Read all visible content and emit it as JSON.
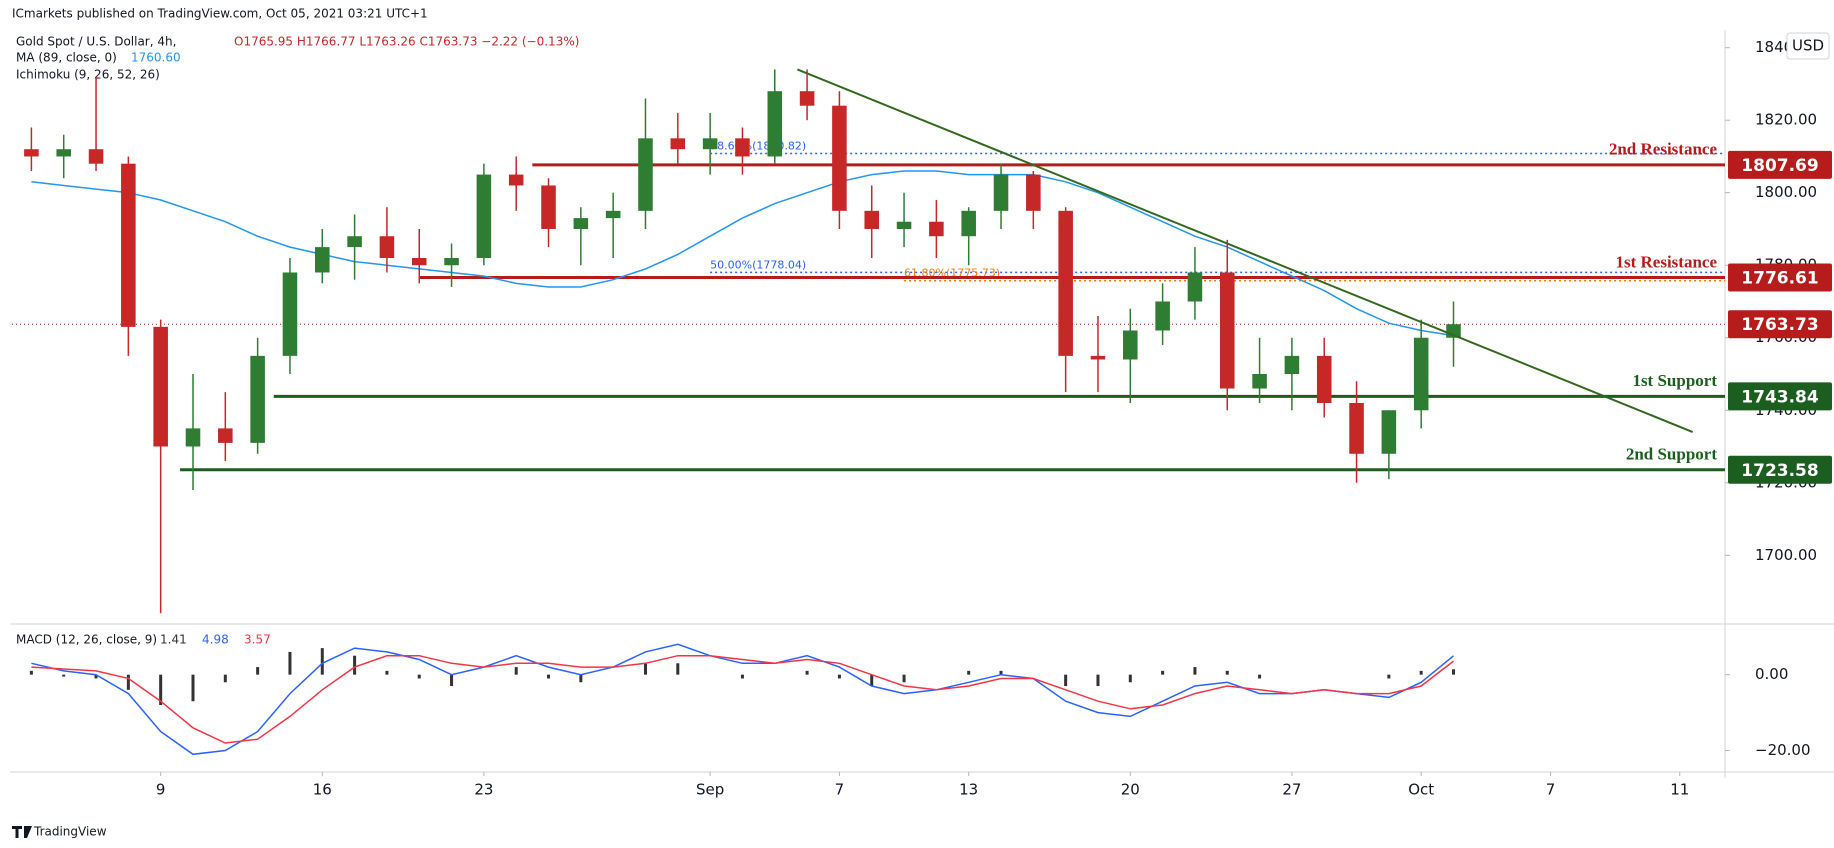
{
  "header": {
    "publisher": "ICmarkets published on TradingView.com, Oct 05, 2021 03:21 UTC+1",
    "symbol": "Gold Spot / U.S. Dollar, 4h,",
    "ohlc": "O1765.95 H1766.77 L1763.26 C1763.73 −2.22 (−0.13%)",
    "ma": "MA (89, close, 0)",
    "ma_value": "1760.60",
    "ichimoku": "Ichimoku (9, 26, 52, 26)",
    "currency": "USD"
  },
  "chart_data": [
    {
      "type": "candlestick",
      "x": [
        -4,
        -3,
        -2,
        -1,
        0,
        1,
        2,
        3,
        4,
        5,
        6,
        7,
        8,
        9,
        10,
        11,
        12,
        13,
        14,
        15,
        16,
        17,
        18,
        19,
        20,
        21,
        22,
        23,
        24,
        25,
        26,
        27,
        28,
        29,
        30,
        31,
        32,
        33,
        34,
        35,
        36,
        37,
        38,
        39,
        40
      ],
      "open": [
        1812,
        1810,
        1812,
        1808,
        1763,
        1730,
        1735,
        1731,
        1755,
        1778,
        1785,
        1788,
        1782,
        1780,
        1782,
        1805,
        1802,
        1790,
        1793,
        1795,
        1815,
        1812,
        1815,
        1810,
        1828,
        1824,
        1795,
        1790,
        1792,
        1788,
        1795,
        1805,
        1795,
        1755,
        1754,
        1762,
        1770,
        1778,
        1746,
        1750,
        1755,
        1742,
        1728,
        1740,
        1760
      ],
      "high": [
        1818,
        1816,
        1832,
        1810,
        1765,
        1750,
        1745,
        1760,
        1782,
        1790,
        1794,
        1796,
        1790,
        1786,
        1808,
        1810,
        1804,
        1796,
        1800,
        1826,
        1822,
        1822,
        1818,
        1834,
        1834,
        1828,
        1802,
        1800,
        1798,
        1796,
        1808,
        1806,
        1796,
        1766,
        1768,
        1775,
        1785,
        1787,
        1760,
        1760,
        1760,
        1748,
        1740,
        1765,
        1770
      ],
      "low": [
        1806,
        1804,
        1806,
        1755,
        1684,
        1718,
        1726,
        1728,
        1750,
        1775,
        1776,
        1778,
        1775,
        1774,
        1780,
        1795,
        1785,
        1780,
        1782,
        1790,
        1808,
        1805,
        1805,
        1808,
        1820,
        1790,
        1782,
        1785,
        1782,
        1780,
        1790,
        1790,
        1745,
        1745,
        1742,
        1758,
        1765,
        1740,
        1742,
        1740,
        1738,
        1720,
        1721,
        1735,
        1752
      ],
      "close": [
        1810,
        1812,
        1808,
        1763,
        1730,
        1735,
        1731,
        1755,
        1778,
        1785,
        1788,
        1782,
        1780,
        1782,
        1805,
        1802,
        1790,
        1793,
        1795,
        1815,
        1812,
        1815,
        1810,
        1828,
        1824,
        1795,
        1790,
        1792,
        1788,
        1795,
        1805,
        1795,
        1755,
        1754,
        1762,
        1770,
        1778,
        1746,
        1750,
        1755,
        1742,
        1728,
        1740,
        1760,
        1763.73
      ],
      "up_color": "#2e7d32",
      "down_color": "#c62828",
      "ma": {
        "color": "#2196f3",
        "values": [
          1803,
          1802,
          1801,
          1800,
          1798,
          1795,
          1792,
          1788,
          1785,
          1783,
          1781,
          1780,
          1779,
          1778,
          1777,
          1775,
          1774,
          1774,
          1776,
          1779,
          1783,
          1788,
          1793,
          1797,
          1800,
          1803,
          1805,
          1806,
          1806,
          1805,
          1805,
          1805,
          1803,
          1800,
          1796,
          1792,
          1788,
          1785,
          1781,
          1777,
          1773,
          1768,
          1764,
          1762,
          1760.6
        ]
      },
      "levels": [
        {
          "name": "2nd Resistance",
          "value": 1807.69,
          "from": 11.5,
          "color": "#b71c1c"
        },
        {
          "name": "1st Resistance",
          "value": 1776.61,
          "from": 8,
          "color": "#b71c1c"
        },
        {
          "name": "1st Support",
          "value": 1743.84,
          "from": 3.5,
          "color": "#1b5e20"
        },
        {
          "name": "2nd Support",
          "value": 1723.58,
          "from": 0.6,
          "color": "#1b5e20"
        }
      ],
      "fib_levels": [
        {
          "label": "78.60%(1810.82)",
          "value": 1810.82,
          "from": 17,
          "color": "#2962ff"
        },
        {
          "label": "50.00%(1778.04)",
          "value": 1778.04,
          "from": 17,
          "color": "#2962ff"
        },
        {
          "label": "61.80%(1775.73)",
          "value": 1775.73,
          "from": 23,
          "color": "#f57c00"
        }
      ],
      "trendline": {
        "x": [
          19.7,
          47.4
        ],
        "y": [
          1834,
          1734
        ],
        "color": "#33691e"
      },
      "last_price_color": "#b71c1c",
      "xlim": [
        -4.6,
        48.4
      ],
      "ylim": [
        1681.6,
        1843.5
      ],
      "yticks": [
        {
          "value": 1700,
          "label": "1700.00"
        },
        {
          "value": 1720,
          "label": "1720.00"
        },
        {
          "value": 1740,
          "label": "1740.00"
        },
        {
          "value": 1760,
          "label": "1760.00"
        },
        {
          "value": 1780,
          "label": "1780.00"
        },
        {
          "value": 1800,
          "label": "1800.00"
        },
        {
          "value": 1820,
          "label": "1820.00"
        },
        {
          "value": 1840,
          "label": "1840.00"
        }
      ]
    },
    {
      "type": "macd",
      "title": "MACD (12, 26, close, 9)",
      "x": [
        -4,
        -3,
        -2,
        -1,
        0,
        1,
        2,
        3,
        4,
        5,
        6,
        7,
        8,
        9,
        10,
        11,
        12,
        13,
        14,
        15,
        16,
        17,
        18,
        19,
        20,
        21,
        22,
        23,
        24,
        25,
        26,
        27,
        28,
        29,
        30,
        31,
        32,
        33,
        34,
        35,
        36,
        37,
        38,
        39,
        40
      ],
      "series": [
        {
          "name": "Histogram",
          "color": "#333333",
          "values": [
            1,
            -0.5,
            -1,
            -4,
            -8,
            -7,
            -2,
            2,
            6,
            7,
            5,
            1,
            -1,
            -3,
            0,
            2,
            -1,
            -2,
            0,
            3,
            3,
            0,
            -1,
            0,
            1,
            -1,
            -3,
            -2,
            0,
            1,
            1,
            0,
            -3,
            -3,
            -2,
            1,
            2,
            1,
            -1,
            0,
            0,
            0,
            -1,
            1,
            1.41
          ]
        },
        {
          "name": "MACD",
          "color": "#2962ff",
          "values": [
            3,
            1,
            0,
            -5,
            -15,
            -21,
            -20,
            -15,
            -5,
            3,
            7,
            6,
            4,
            0,
            2,
            5,
            2,
            0,
            2,
            6,
            8,
            5,
            3,
            3,
            5,
            2,
            -3,
            -5,
            -4,
            -2,
            0,
            -1,
            -7,
            -10,
            -11,
            -7,
            -3,
            -2,
            -5,
            -5,
            -4,
            -5,
            -6,
            -2,
            4.98
          ]
        },
        {
          "name": "Signal",
          "color": "#f23645",
          "values": [
            2,
            1.5,
            1,
            -1,
            -7,
            -14,
            -18,
            -17,
            -11,
            -4,
            2,
            5,
            5,
            3,
            2,
            3,
            3,
            2,
            2,
            3,
            5,
            5,
            4,
            3,
            4,
            3,
            0,
            -3,
            -4,
            -3,
            -1,
            -1,
            -4,
            -7,
            -9,
            -8,
            -5,
            -3,
            -4,
            -5,
            -4,
            -5,
            -5,
            -3,
            3.57
          ]
        }
      ],
      "xlim": [
        -4.6,
        48.4
      ],
      "ylim": [
        -24.6,
        12.3
      ],
      "yticks": [
        {
          "value": -20,
          "label": "−20.00"
        },
        {
          "value": 0,
          "label": "0.00"
        }
      ],
      "xticks": [
        {
          "value": 0,
          "label": "9"
        },
        {
          "value": 5,
          "label": "16"
        },
        {
          "value": 10,
          "label": "23"
        },
        {
          "value": 17,
          "label": "Sep"
        },
        {
          "value": 21,
          "label": "7"
        },
        {
          "value": 25,
          "label": "13"
        },
        {
          "value": 30,
          "label": "20"
        },
        {
          "value": 35,
          "label": "27"
        },
        {
          "value": 39,
          "label": "Oct"
        },
        {
          "value": 43,
          "label": "7"
        },
        {
          "value": 47,
          "label": "11"
        }
      ]
    }
  ],
  "footer": {
    "brand": "TradingView"
  }
}
